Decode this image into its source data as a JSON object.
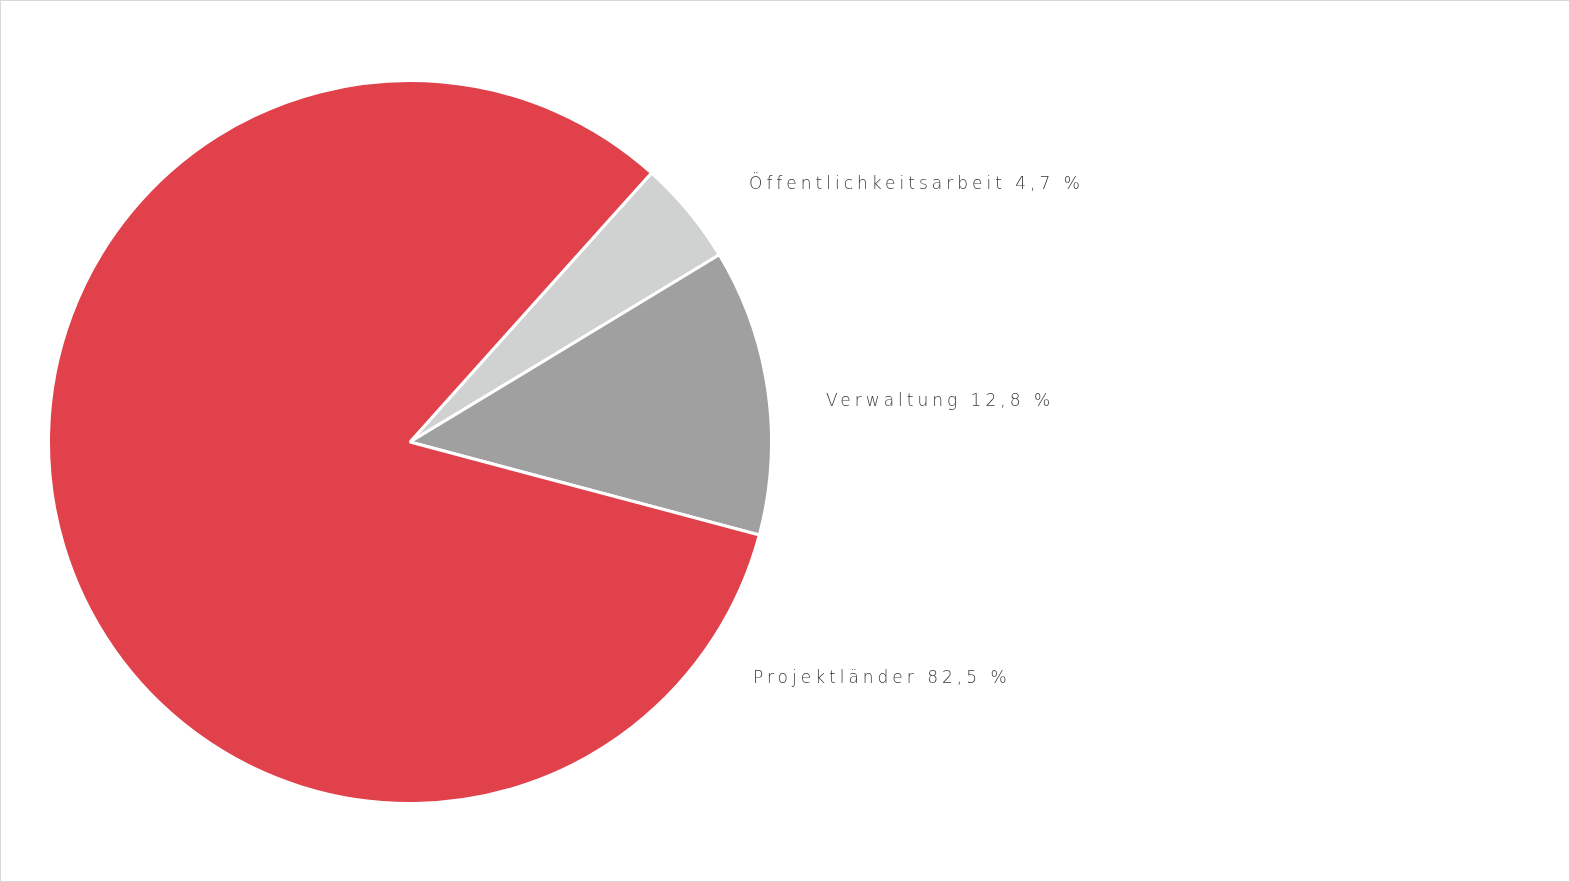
{
  "chart_data": {
    "type": "pie",
    "categories": [
      "Öffentlichkeitsarbeit",
      "Verwaltung",
      "Projektländer"
    ],
    "values": [
      4.7,
      12.8,
      82.5
    ],
    "value_labels": [
      "4,7 %",
      "12,8 %",
      "82,5 %"
    ],
    "colors": [
      "#d0d1d1",
      "#a0a0a0",
      "#e0414b"
    ],
    "legend": false
  }
}
